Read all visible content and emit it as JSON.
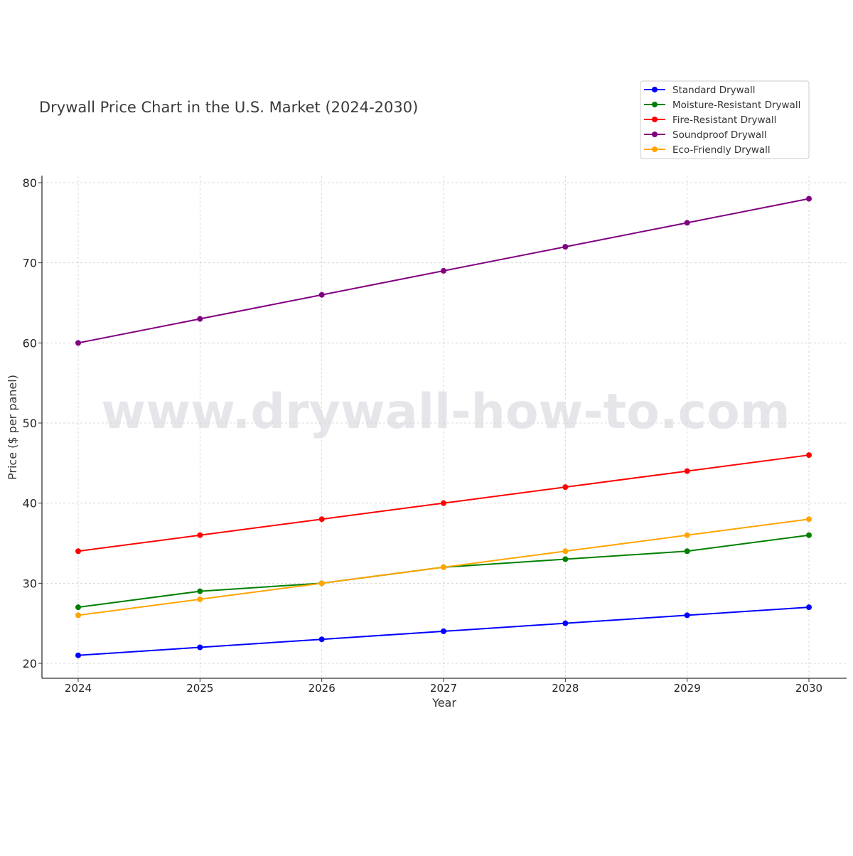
{
  "chart_data": {
    "type": "line",
    "title": "Drywall Price Chart in the U.S. Market (2024-2030)",
    "xlabel": "Year",
    "ylabel": "Price ($ per panel)",
    "x": [
      2024,
      2025,
      2026,
      2027,
      2028,
      2029,
      2030
    ],
    "categories": [
      "2024",
      "2025",
      "2026",
      "2027",
      "2028",
      "2029",
      "2030"
    ],
    "yticks": [
      20,
      30,
      40,
      50,
      60,
      70,
      80
    ],
    "ylim": [
      18.2,
      80.8
    ],
    "grid": true,
    "legend_position": "upper right (outside, above plot)",
    "series": [
      {
        "name": "Standard Drywall",
        "color": "#0000ff",
        "values": [
          21,
          22,
          23,
          24,
          25,
          26,
          27
        ]
      },
      {
        "name": "Moisture-Resistant Drywall",
        "color": "#008000",
        "values": [
          27,
          29,
          30,
          32,
          33,
          34,
          36
        ]
      },
      {
        "name": "Fire-Resistant Drywall",
        "color": "#ff0000",
        "values": [
          34,
          36,
          38,
          40,
          42,
          44,
          46
        ]
      },
      {
        "name": "Soundproof Drywall",
        "color": "#800080",
        "values": [
          60,
          63,
          66,
          69,
          72,
          75,
          78
        ]
      },
      {
        "name": "Eco-Friendly Drywall",
        "color": "#ffa500",
        "values": [
          26,
          28,
          30,
          32,
          34,
          36,
          38
        ]
      }
    ],
    "annotations": [
      "www.drywall-how-to.com"
    ]
  },
  "watermark": "www.drywall-how-to.com"
}
